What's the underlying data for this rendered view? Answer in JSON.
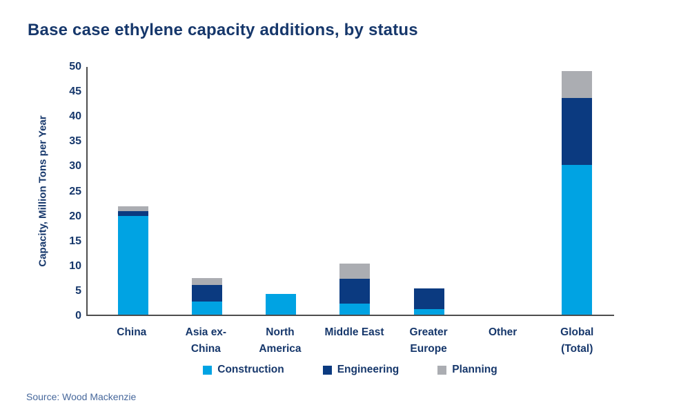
{
  "title": "Base case ethylene capacity additions, by status",
  "source": "Source: Wood Mackenzie",
  "colors": {
    "text_navy": "#16376B",
    "axis_line": "#4D4D4D",
    "source_text": "#46679B",
    "construction": "#00A3E3",
    "engineering": "#0B3A80",
    "planning": "#ABADB2",
    "background": "#FFFFFF"
  },
  "chart_data": {
    "type": "bar",
    "stacked": true,
    "title": "Base case ethylene capacity additions, by status",
    "xlabel": "",
    "ylabel": "Capacity, Million Tons per Year",
    "ylim": [
      0,
      50
    ],
    "yticks": [
      0,
      5,
      10,
      15,
      20,
      25,
      30,
      35,
      40,
      45,
      50
    ],
    "grid": false,
    "legend_position": "bottom",
    "categories": [
      "China",
      "Asia ex-\nChina",
      "North\nAmerica",
      "Middle East",
      "Greater\nEurope",
      "Other",
      "Global\n(Total)"
    ],
    "series": [
      {
        "name": "Construction",
        "color": "#00A3E3",
        "values": [
          19.8,
          2.6,
          4.2,
          2.2,
          1.1,
          0,
          30.0
        ]
      },
      {
        "name": "Engineering",
        "color": "#0B3A80",
        "values": [
          1.0,
          3.3,
          0,
          5.0,
          4.1,
          0,
          13.5
        ]
      },
      {
        "name": "Planning",
        "color": "#ABADB2",
        "values": [
          0.9,
          1.5,
          0,
          3.0,
          0,
          0,
          5.4
        ]
      }
    ]
  }
}
